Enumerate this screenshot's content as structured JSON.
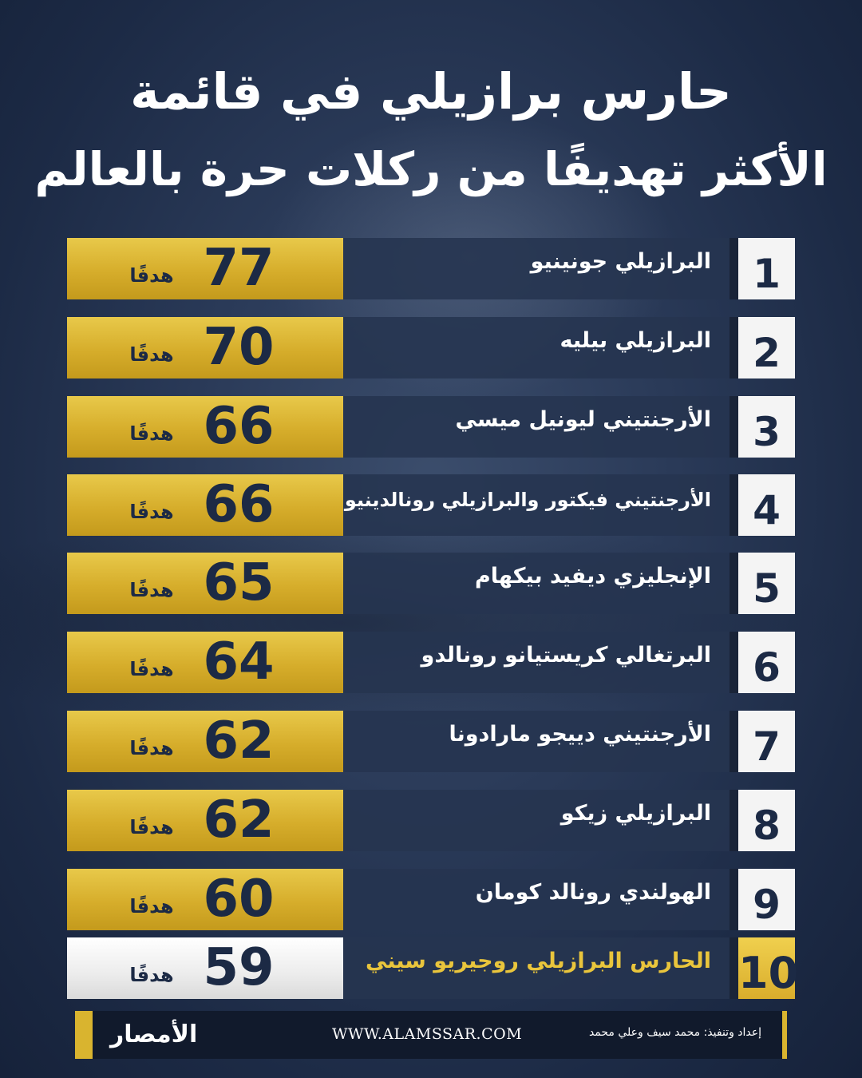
{
  "title": {
    "line1": "حارس برازيلي في قائمة",
    "line2": "الأكثر تهديفًا من ركلات حرة بالعالم"
  },
  "unit_label": "هدفًا",
  "rows": [
    {
      "rank": "1",
      "name": "البرازيلي جونينيو",
      "goals": "77"
    },
    {
      "rank": "2",
      "name": "البرازيلي بيليه",
      "goals": "70"
    },
    {
      "rank": "3",
      "name": "الأرجنتيني ليونيل ميسي",
      "goals": "66"
    },
    {
      "rank": "4",
      "name": "الأرجنتيني فيكتور والبرازيلي رونالدينيو",
      "goals": "66"
    },
    {
      "rank": "5",
      "name": "الإنجليزي ديفيد بيكهام",
      "goals": "65"
    },
    {
      "rank": "6",
      "name": "البرتغالي كريستيانو رونالدو",
      "goals": "64"
    },
    {
      "rank": "7",
      "name": "الأرجنتيني دييجو مارادونا",
      "goals": "62"
    },
    {
      "rank": "8",
      "name": "البرازيلي زيكو",
      "goals": "62"
    },
    {
      "rank": "9",
      "name": "الهولندي رونالد كومان",
      "goals": "60"
    },
    {
      "rank": "10",
      "name": "الحارس البرازيلي روجيريو سيني",
      "goals": "59"
    }
  ],
  "footer": {
    "credit": "إعداد وتنفيذ: محمد سيف وعلي محمد",
    "site": "WWW.ALAMSSAR.COM",
    "logo_text": "الأمصار"
  },
  "colors": {
    "gold": "#d6ad2b",
    "navy": "#1c2a45",
    "highlight_text": "#e9c53c"
  }
}
